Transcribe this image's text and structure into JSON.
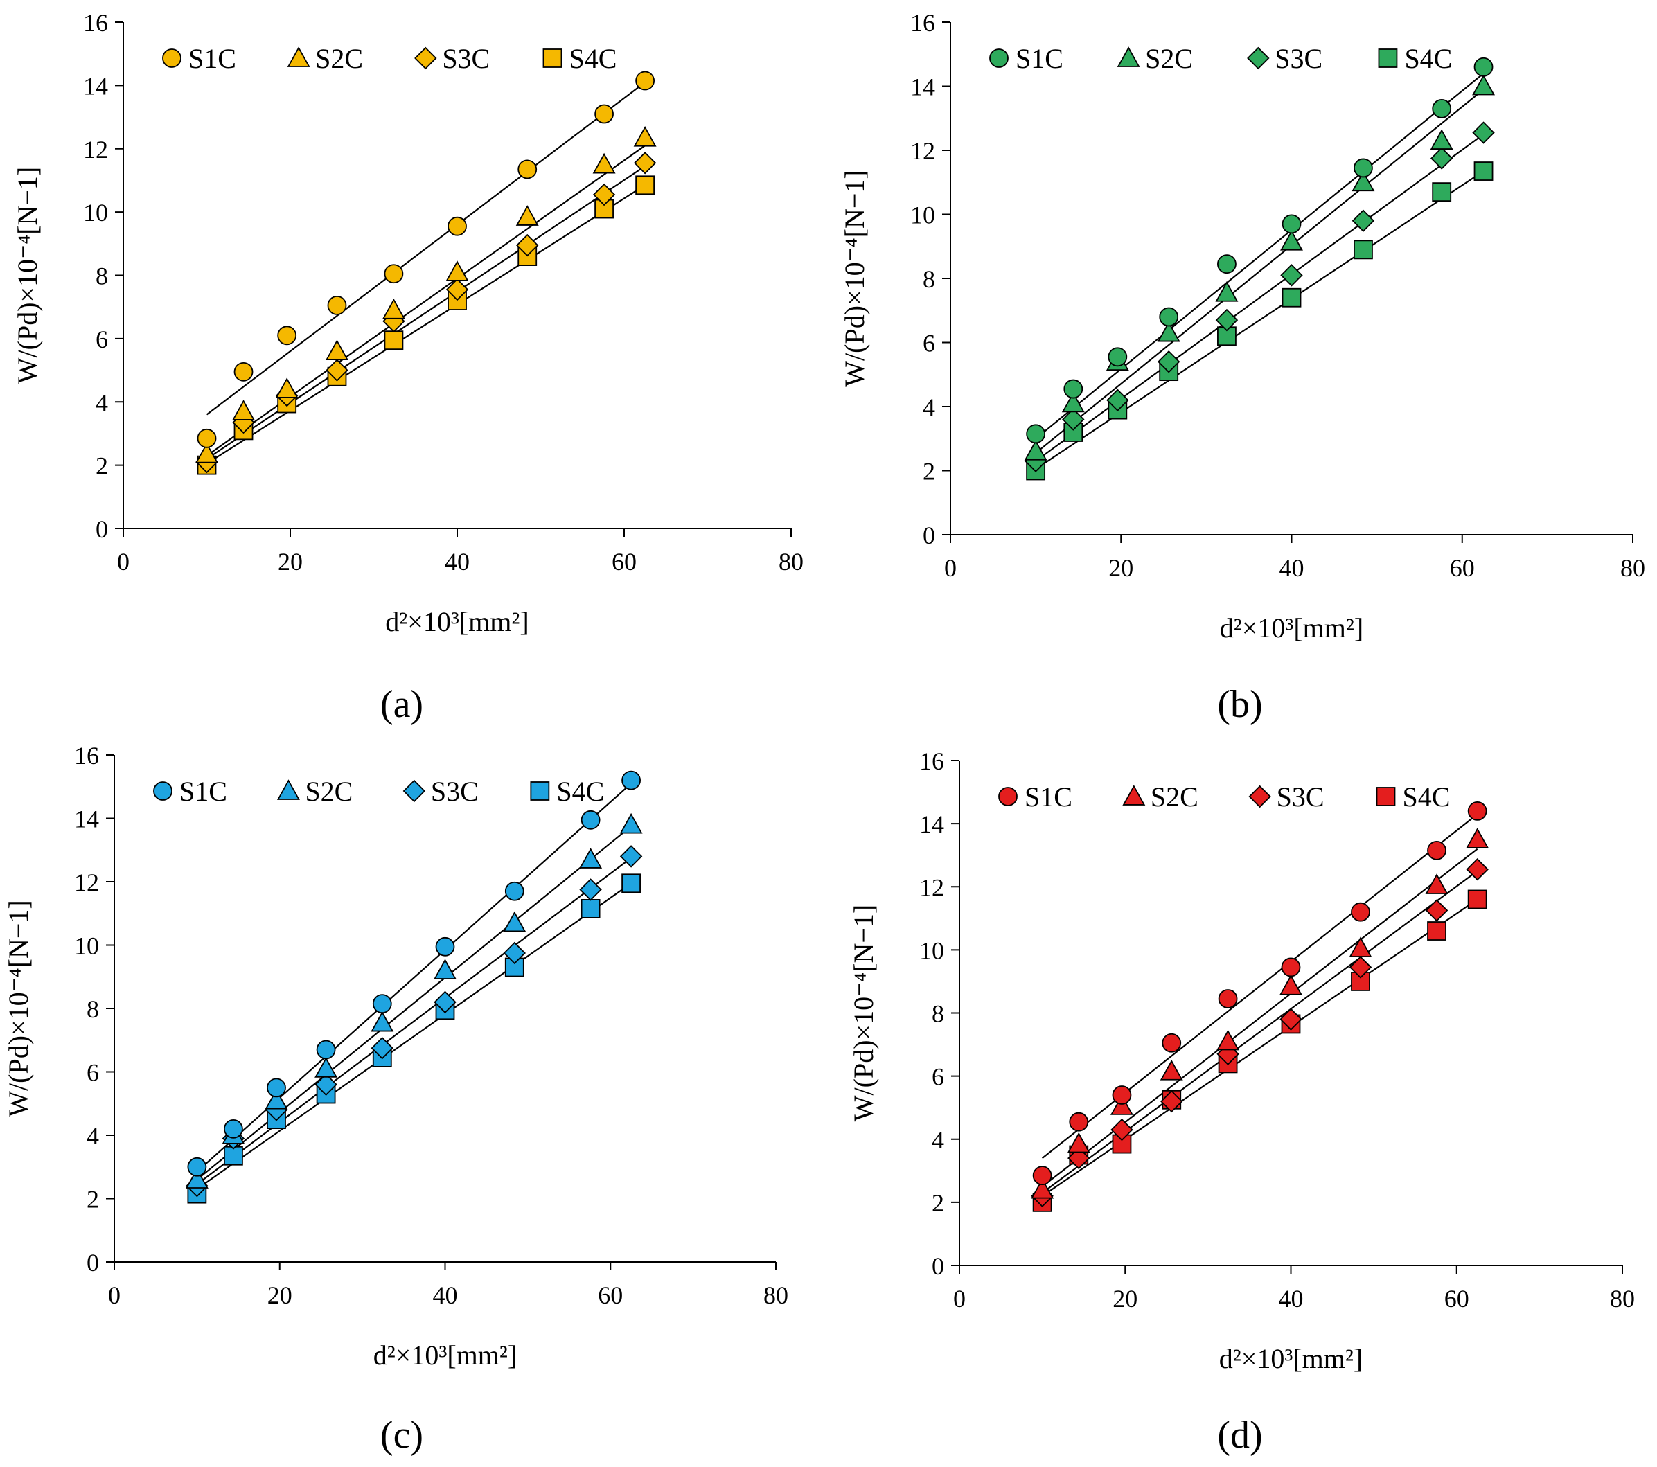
{
  "figure": {
    "panels": [
      {
        "label": "(a)",
        "label_letter": "a"
      },
      {
        "label": "(b)",
        "label_letter": "b"
      },
      {
        "label": "(c)",
        "label_letter": "c"
      },
      {
        "label": "(d)",
        "label_letter": "d"
      }
    ]
  },
  "chart_data": [
    {
      "type": "scatter",
      "panel": "(a)",
      "color": "#F5B800",
      "xlabel": "d²×10³[mm²]",
      "ylabel": "W/(Pd)×10⁻⁴[N−1]",
      "xlim": [
        0,
        80
      ],
      "ylim": [
        0,
        16
      ],
      "xticks": [
        0,
        20,
        40,
        60,
        80
      ],
      "yticks": [
        0,
        2,
        4,
        6,
        8,
        10,
        12,
        14,
        16
      ],
      "grid": false,
      "legend_position": "top",
      "x": [
        10.0,
        14.4,
        19.6,
        25.6,
        32.4,
        40.0,
        48.4,
        57.6,
        62.5
      ],
      "series": [
        {
          "name": "S1C",
          "marker": "circle",
          "values": [
            2.85,
            4.95,
            6.1,
            7.05,
            8.05,
            9.55,
            11.35,
            13.1,
            14.15
          ],
          "fit": [
            3.6,
            14.1
          ]
        },
        {
          "name": "S2C",
          "marker": "triangle",
          "values": [
            2.35,
            3.7,
            4.4,
            5.6,
            6.9,
            8.1,
            9.85,
            11.5,
            12.35
          ],
          "fit": [
            2.3,
            12.1
          ]
        },
        {
          "name": "S3C",
          "marker": "diamond",
          "values": [
            2.1,
            3.35,
            4.2,
            5.0,
            6.55,
            7.55,
            8.95,
            10.55,
            11.55
          ],
          "fit": [
            2.2,
            11.45
          ]
        },
        {
          "name": "S4C",
          "marker": "square",
          "values": [
            2.0,
            3.1,
            3.95,
            4.8,
            5.95,
            7.2,
            8.6,
            10.1,
            10.85
          ],
          "fit": [
            2.05,
            10.85
          ]
        }
      ]
    },
    {
      "type": "scatter",
      "panel": "(b)",
      "color": "#2EAA5C",
      "xlabel": "d²×10³[mm²]",
      "ylabel": "W/(Pd)×10⁻⁴[N−1]",
      "xlim": [
        0,
        80
      ],
      "ylim": [
        0,
        16
      ],
      "xticks": [
        0,
        20,
        40,
        60,
        80
      ],
      "yticks": [
        0,
        2,
        4,
        6,
        8,
        10,
        12,
        14,
        16
      ],
      "grid": false,
      "legend_position": "top",
      "x": [
        10.0,
        14.4,
        19.6,
        25.6,
        32.4,
        40.0,
        48.4,
        57.6,
        62.5
      ],
      "series": [
        {
          "name": "S1C",
          "marker": "circle",
          "values": [
            3.15,
            4.55,
            5.55,
            6.8,
            8.45,
            9.7,
            11.45,
            13.3,
            14.6
          ],
          "fit": [
            3.0,
            14.4
          ]
        },
        {
          "name": "S2C",
          "marker": "triangle",
          "values": [
            2.6,
            4.1,
            5.4,
            6.3,
            7.55,
            9.15,
            11.0,
            12.3,
            14.0
          ],
          "fit": [
            2.55,
            13.9
          ]
        },
        {
          "name": "S3C",
          "marker": "diamond",
          "values": [
            2.3,
            3.6,
            4.2,
            5.4,
            6.7,
            8.1,
            9.8,
            11.75,
            12.55
          ],
          "fit": [
            2.3,
            12.5
          ]
        },
        {
          "name": "S4C",
          "marker": "square",
          "values": [
            2.0,
            3.2,
            3.9,
            5.1,
            6.2,
            7.4,
            8.9,
            10.7,
            11.35
          ],
          "fit": [
            2.05,
            11.35
          ]
        }
      ]
    },
    {
      "type": "scatter",
      "panel": "(c)",
      "color": "#1FA4E0",
      "xlabel": "d²×10³[mm²]",
      "ylabel": "W/(Pd)×10⁻⁴[N−1]",
      "xlim": [
        0,
        80
      ],
      "ylim": [
        0,
        16
      ],
      "xticks": [
        0,
        20,
        40,
        60,
        80
      ],
      "yticks": [
        0,
        2,
        4,
        6,
        8,
        10,
        12,
        14,
        16
      ],
      "grid": false,
      "legend_position": "top",
      "x": [
        10.0,
        14.4,
        19.6,
        25.6,
        32.4,
        40.0,
        48.4,
        57.6,
        62.5
      ],
      "series": [
        {
          "name": "S1C",
          "marker": "circle",
          "values": [
            3.0,
            4.2,
            5.5,
            6.7,
            8.15,
            9.95,
            11.7,
            13.95,
            15.2
          ],
          "fit": [
            2.85,
            15.1
          ]
        },
        {
          "name": "S2C",
          "marker": "triangle",
          "values": [
            2.6,
            4.0,
            5.1,
            6.1,
            7.55,
            9.2,
            10.7,
            12.7,
            13.8
          ],
          "fit": [
            2.6,
            13.75
          ]
        },
        {
          "name": "S3C",
          "marker": "diamond",
          "values": [
            2.4,
            3.9,
            4.8,
            5.6,
            6.75,
            8.2,
            9.75,
            11.75,
            12.8
          ],
          "fit": [
            2.45,
            12.75
          ]
        },
        {
          "name": "S4C",
          "marker": "square",
          "values": [
            2.15,
            3.35,
            4.5,
            5.3,
            6.45,
            7.95,
            9.3,
            11.15,
            11.95
          ],
          "fit": [
            2.3,
            11.95
          ]
        }
      ]
    },
    {
      "type": "scatter",
      "panel": "(d)",
      "color": "#E41E1E",
      "xlabel": "d²×10³[mm²]",
      "ylabel": "W/(Pd)×10⁻⁴[N−1]",
      "xlim": [
        0,
        80
      ],
      "ylim": [
        0,
        16
      ],
      "xticks": [
        0,
        20,
        40,
        60,
        80
      ],
      "yticks": [
        0,
        2,
        4,
        6,
        8,
        10,
        12,
        14,
        16
      ],
      "grid": false,
      "legend_position": "top",
      "x": [
        10.0,
        14.4,
        19.6,
        25.6,
        32.4,
        40.0,
        48.4,
        57.6,
        62.5
      ],
      "series": [
        {
          "name": "S1C",
          "marker": "circle",
          "values": [
            2.85,
            4.55,
            5.4,
            7.05,
            8.45,
            9.45,
            11.2,
            13.15,
            14.4
          ],
          "fit": [
            3.4,
            14.3
          ]
        },
        {
          "name": "S2C",
          "marker": "triangle",
          "values": [
            2.4,
            3.85,
            5.05,
            6.15,
            7.1,
            8.85,
            10.05,
            12.05,
            13.5
          ],
          "fit": [
            2.5,
            13.2
          ]
        },
        {
          "name": "S3C",
          "marker": "diamond",
          "values": [
            2.2,
            3.4,
            4.3,
            5.2,
            6.7,
            7.8,
            9.45,
            11.25,
            12.55
          ],
          "fit": [
            2.3,
            12.5
          ]
        },
        {
          "name": "S4C",
          "marker": "square",
          "values": [
            2.0,
            3.5,
            3.85,
            5.25,
            6.4,
            7.65,
            9.0,
            10.6,
            11.6
          ],
          "fit": [
            2.2,
            11.6
          ]
        }
      ]
    }
  ]
}
